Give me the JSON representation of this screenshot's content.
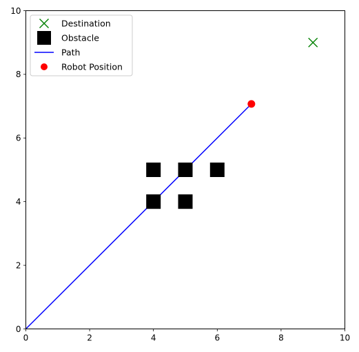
{
  "chart_data": {
    "type": "scatter",
    "title": "",
    "xlabel": "",
    "ylabel": "",
    "xlim": [
      0,
      10
    ],
    "ylim": [
      0,
      10
    ],
    "grid": false,
    "legend_position": "top-left",
    "x_ticks": [
      0,
      2,
      4,
      6,
      8,
      10
    ],
    "y_ticks": [
      0,
      2,
      4,
      6,
      8,
      10
    ],
    "series": [
      {
        "name": "Destination",
        "marker": "x",
        "color": "#008000",
        "points": [
          [
            9,
            9
          ]
        ]
      },
      {
        "name": "Obstacle",
        "marker": "square",
        "color": "#000000",
        "points": [
          [
            4,
            4
          ],
          [
            4,
            5
          ],
          [
            5,
            4
          ],
          [
            5,
            5
          ],
          [
            6,
            5
          ]
        ]
      },
      {
        "name": "Path",
        "marker": "line",
        "color": "#0000ff",
        "points": [
          [
            0,
            0
          ],
          [
            7.07,
            7.07
          ]
        ]
      },
      {
        "name": "Robot Position",
        "marker": "circle",
        "color": "#ff0000",
        "points": [
          [
            7.07,
            7.07
          ]
        ]
      }
    ]
  }
}
